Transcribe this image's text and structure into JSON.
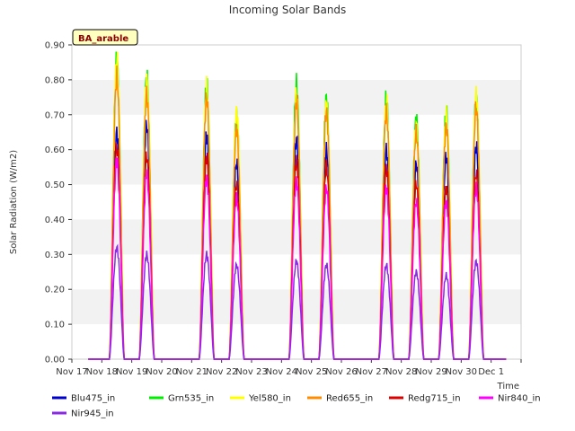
{
  "chart_data": {
    "type": "line",
    "title": "Incoming Solar Bands",
    "xlabel": "Time",
    "ylabel": "Solar Radiation (W/m2)",
    "ylim": [
      0,
      0.9
    ],
    "xlim": [
      0,
      15
    ],
    "yticks": [
      0.0,
      0.1,
      0.2,
      0.3,
      0.4,
      0.5,
      0.6,
      0.7,
      0.8,
      0.9
    ],
    "ytick_labels": [
      "0.00",
      "0.10",
      "0.20",
      "0.30",
      "0.40",
      "0.50",
      "0.60",
      "0.70",
      "0.80",
      "0.90"
    ],
    "xticks": [
      0,
      1,
      2,
      3,
      4,
      5,
      6,
      7,
      8,
      9,
      10,
      11,
      12,
      13,
      14,
      15
    ],
    "xtick_labels": [
      "Nov 17",
      "Nov 18",
      "Nov 19",
      "Nov 20",
      "Nov 21",
      "Nov 22",
      "Nov 23",
      "Nov 24",
      "Nov 25",
      "Nov 26",
      "Nov 27",
      "Nov 28",
      "Nov 29",
      "Nov 30",
      "Dec 1"
    ],
    "annotation": "BA_arable",
    "grid": "horizontal bands",
    "legend_position": "bottom",
    "day_centers": [
      1.5,
      2.5,
      4.5,
      5.5,
      7.5,
      8.5,
      10.5,
      11.5,
      12.5,
      13.5
    ],
    "series": [
      {
        "name": "Blu475_in",
        "color": "#0000cc",
        "peaks": [
          0.65,
          0.67,
          0.64,
          0.56,
          0.63,
          0.6,
          0.6,
          0.56,
          0.58,
          0.61
        ]
      },
      {
        "name": "Grn535_in",
        "color": "#00ee00",
        "peaks": [
          0.86,
          0.81,
          0.79,
          0.7,
          0.79,
          0.75,
          0.75,
          0.69,
          0.71,
          0.75
        ]
      },
      {
        "name": "Yel580_in",
        "color": "#ffff00",
        "peaks": [
          0.86,
          0.8,
          0.78,
          0.71,
          0.76,
          0.73,
          0.74,
          0.67,
          0.7,
          0.76
        ]
      },
      {
        "name": "Red655_in",
        "color": "#ff8c00",
        "peaks": [
          0.81,
          0.76,
          0.75,
          0.66,
          0.74,
          0.71,
          0.71,
          0.65,
          0.67,
          0.72
        ]
      },
      {
        "name": "Redg715_in",
        "color": "#dd0000",
        "peaks": [
          0.61,
          0.58,
          0.58,
          0.5,
          0.57,
          0.55,
          0.55,
          0.5,
          0.49,
          0.53
        ]
      },
      {
        "name": "Nir840_in",
        "color": "#ff00ff",
        "peaks": [
          0.57,
          0.53,
          0.52,
          0.46,
          0.51,
          0.49,
          0.49,
          0.45,
          0.45,
          0.49
        ]
      },
      {
        "name": "Nir945_in",
        "color": "#8a2be2",
        "peaks": [
          0.32,
          0.3,
          0.3,
          0.27,
          0.28,
          0.27,
          0.27,
          0.25,
          0.24,
          0.28
        ]
      }
    ]
  }
}
